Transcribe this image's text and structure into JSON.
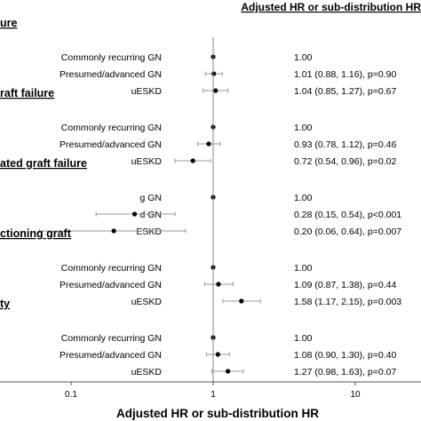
{
  "chart_data": {
    "type": "forest",
    "header": "Adjusted HR or sub-distribution HR",
    "xlabel": "Adjusted HR or sub-distribution HR",
    "xscale": "log",
    "xticks": [
      "0.1",
      "1",
      "10"
    ],
    "reference_line": 1,
    "sections": [
      {
        "title": "ure",
        "rows": [
          {
            "label": "Commonly recurring GN",
            "hr": 1.0,
            "lo": null,
            "hi": null,
            "text": "1.00"
          },
          {
            "label": "Presumed/advanced GN",
            "hr": 1.01,
            "lo": 0.88,
            "hi": 1.16,
            "text": "1.01 (0.88, 1.16), p=0.90"
          },
          {
            "label": "uESKD",
            "hr": 1.04,
            "lo": 0.85,
            "hi": 1.27,
            "text": "1.04 (0.85, 1.27), p=0.67"
          }
        ]
      },
      {
        "title": "raft failure",
        "rows": [
          {
            "label": "Commonly recurring GN",
            "hr": 1.0,
            "lo": null,
            "hi": null,
            "text": "1.00"
          },
          {
            "label": "Presumed/advanced GN",
            "hr": 0.93,
            "lo": 0.78,
            "hi": 1.12,
            "text": "0.93 (0.78, 1.12), p=0.46"
          },
          {
            "label": "uESKD",
            "hr": 0.72,
            "lo": 0.54,
            "hi": 0.96,
            "text": "0.72 (0.54, 0.96), p=0.02"
          }
        ]
      },
      {
        "title": "ated graft failure",
        "rows": [
          {
            "label": "g GN",
            "hr": 1.0,
            "lo": null,
            "hi": null,
            "text": "1.00"
          },
          {
            "label": "d GN",
            "hr": 0.28,
            "lo": 0.15,
            "hi": 0.54,
            "text": "0.28 (0.15, 0.54), p<0.001"
          },
          {
            "label": "ESKD",
            "hr": 0.2,
            "lo": 0.06,
            "hi": 0.64,
            "text": "0.20 (0.06, 0.64), p=0.007"
          }
        ]
      },
      {
        "title": "ctioning graft",
        "rows": [
          {
            "label": "Commonly recurring GN",
            "hr": 1.0,
            "lo": null,
            "hi": null,
            "text": "1.00"
          },
          {
            "label": "Presumed/advanced GN",
            "hr": 1.09,
            "lo": 0.87,
            "hi": 1.38,
            "text": "1.09 (0.87, 1.38), p=0.44"
          },
          {
            "label": "uESKD",
            "hr": 1.58,
            "lo": 1.17,
            "hi": 2.15,
            "text": "1.58 (1.17, 2.15), p=0.003"
          }
        ]
      },
      {
        "title": "ty",
        "rows": [
          {
            "label": "Commonly recurring GN",
            "hr": 1.0,
            "lo": null,
            "hi": null,
            "text": "1.00"
          },
          {
            "label": "Presumed/advanced GN",
            "hr": 1.08,
            "lo": 0.9,
            "hi": 1.3,
            "text": "1.08 (0.90, 1.30), p=0.40"
          },
          {
            "label": "uESKD",
            "hr": 1.27,
            "lo": 0.98,
            "hi": 1.63,
            "text": "1.27 (0.98, 1.63), p=0.07"
          }
        ]
      }
    ],
    "colors": {
      "point": "#000000",
      "ci": "#9a9a9a",
      "axis": "#555555",
      "refline": "#888888"
    }
  }
}
